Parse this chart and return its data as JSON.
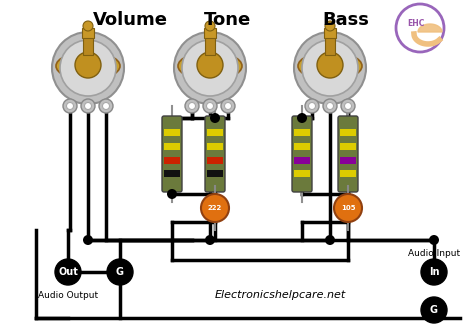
{
  "background_color": "#ffffff",
  "fig_width": 4.74,
  "fig_height": 3.29,
  "dpi": 100,
  "labels": {
    "volume": "Volume",
    "tone": "Tone",
    "bass": "Bass",
    "audio_output": "Audio Output",
    "audio_input": "Audio Input",
    "out": "Out",
    "in_label": "In",
    "ground": "G",
    "website": "Electronicshelpcare.net",
    "cap1": "222",
    "cap2": "105"
  },
  "colors": {
    "wire": "#000000",
    "resistor_body": "#6b7a3c",
    "res_black": "#111111",
    "res_red": "#cc2200",
    "res_yellow": "#ddcc00",
    "res_purple": "#880099",
    "capacitor": "#e07010",
    "logo_ring": "#9966bb",
    "logo_body": "#f0c080",
    "logo_text": "#9955aa"
  }
}
